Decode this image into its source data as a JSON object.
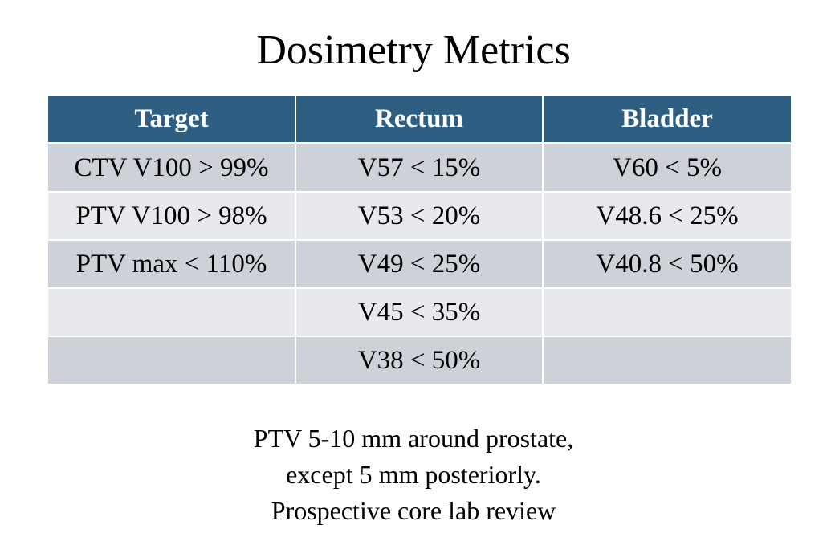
{
  "title": "Dosimetry Metrics",
  "table": {
    "headers": [
      "Target",
      "Rectum",
      "Bladder"
    ],
    "rows": [
      [
        "CTV V100 > 99%",
        "V57 < 15%",
        "V60 < 5%"
      ],
      [
        "PTV V100 > 98%",
        "V53 < 20%",
        "V48.6 < 25%"
      ],
      [
        "PTV max < 110%",
        "V49 < 25%",
        "V40.8 < 50%"
      ],
      [
        "",
        "V45 < 35%",
        ""
      ],
      [
        "",
        "V38 < 50%",
        ""
      ]
    ]
  },
  "footnote": {
    "lines": [
      "PTV 5-10 mm around prostate,",
      "except 5 mm posteriorly.",
      "Prospective core lab review"
    ]
  },
  "colors": {
    "header_bg": "#2e5f82",
    "row_dark": "#cdd2d9",
    "row_light": "#e7e9ed"
  }
}
